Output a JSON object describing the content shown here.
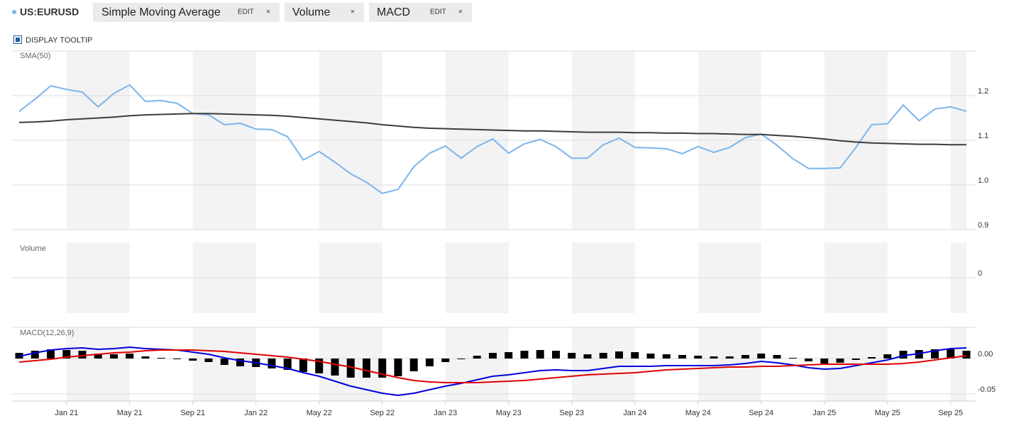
{
  "header": {
    "tabs": [
      {
        "label": "Simple Moving Average",
        "edit": "EDIT",
        "close": "×"
      },
      {
        "label": "Volume",
        "close": "×"
      },
      {
        "label": "MACD",
        "edit": "EDIT",
        "close": "×"
      }
    ],
    "tooltip": "DISPLAY TOOLTIP"
  },
  "chart_data": [
    {
      "type": "line",
      "ylim": [
        0.9,
        1.3
      ],
      "yticks": [
        0.9,
        {
          "value": 1,
          "label": "1.0"
        },
        1.1,
        1.2
      ],
      "grid": true,
      "series": [
        {
          "name": "US:EURUSD",
          "color": "#7cb5ec",
          "values": [
            1.165,
            1.192,
            1.222,
            1.214,
            1.208,
            1.175,
            1.205,
            1.224,
            1.187,
            1.189,
            1.183,
            1.16,
            1.157,
            1.135,
            1.138,
            1.125,
            1.124,
            1.108,
            1.056,
            1.075,
            1.051,
            1.025,
            1.006,
            0.981,
            0.99,
            1.041,
            1.071,
            1.087,
            1.06,
            1.086,
            1.103,
            1.071,
            1.092,
            1.102,
            1.086,
            1.06,
            1.06,
            1.09,
            1.105,
            1.084,
            1.083,
            1.081,
            1.07,
            1.086,
            1.073,
            1.084,
            1.106,
            1.114,
            1.089,
            1.059,
            1.037,
            1.037,
            1.038,
            1.084,
            1.135,
            1.137,
            1.179,
            1.144,
            1.17,
            1.175,
            1.165
          ]
        },
        {
          "name": "SMA(50)",
          "color": "#3c3c3c",
          "values": [
            1.14,
            1.141,
            1.143,
            1.146,
            1.148,
            1.15,
            1.152,
            1.155,
            1.157,
            1.158,
            1.159,
            1.16,
            1.16,
            1.159,
            1.158,
            1.157,
            1.156,
            1.154,
            1.151,
            1.148,
            1.145,
            1.142,
            1.139,
            1.135,
            1.132,
            1.129,
            1.127,
            1.126,
            1.125,
            1.124,
            1.123,
            1.122,
            1.121,
            1.121,
            1.12,
            1.119,
            1.118,
            1.118,
            1.118,
            1.117,
            1.117,
            1.116,
            1.116,
            1.115,
            1.115,
            1.114,
            1.113,
            1.113,
            1.111,
            1.109,
            1.106,
            1.103,
            1.099,
            1.096,
            1.094,
            1.093,
            1.092,
            1.091,
            1.091,
            1.09,
            1.09
          ]
        }
      ]
    },
    {
      "type": "bar",
      "title": "Volume",
      "yticks": [
        0
      ],
      "grid": true
    },
    {
      "type": "line",
      "title": "MACD(12,26,9)",
      "ylim": [
        -0.06,
        0.044
      ],
      "yticks": [
        {
          "value": -0.05,
          "label": "-0.05"
        },
        {
          "value": 0,
          "label": "0.00"
        }
      ],
      "grid": true,
      "categories": [
        null,
        null,
        null,
        "Jan 21",
        null,
        null,
        null,
        "May 21",
        null,
        null,
        null,
        "Sep 21",
        null,
        null,
        null,
        "Jan 22",
        null,
        null,
        null,
        "May 22",
        null,
        null,
        null,
        "Sep 22",
        null,
        null,
        null,
        "Jan 23",
        null,
        null,
        null,
        "May 23",
        null,
        null,
        null,
        "Sep 23",
        null,
        null,
        null,
        "Jan 24",
        null,
        null,
        null,
        "May 24",
        null,
        null,
        null,
        "Sep 24",
        null,
        null,
        null,
        "Jan 25",
        null,
        null,
        null,
        "May 25",
        null,
        null,
        null,
        "Sep 25",
        null
      ],
      "series": [
        {
          "type": "bar",
          "color": "#000000",
          "values": [
            0.008,
            0.011,
            0.013,
            0.012,
            0.011,
            0.007,
            0.006,
            0.007,
            0.003,
            0.001,
            0,
            -0.003,
            -0.005,
            -0.009,
            -0.011,
            -0.012,
            -0.014,
            -0.016,
            -0.019,
            -0.021,
            -0.024,
            -0.027,
            -0.027,
            -0.027,
            -0.025,
            -0.018,
            -0.011,
            -0.005,
            -0.001,
            0.004,
            0.008,
            0.009,
            0.011,
            0.012,
            0.011,
            0.008,
            0.006,
            0.008,
            0.01,
            0.009,
            0.007,
            0.006,
            0.005,
            0.004,
            0.003,
            0.003,
            0.005,
            0.007,
            0.005,
            0.001,
            -0.004,
            -0.007,
            -0.006,
            -0.002,
            0.002,
            0.006,
            0.011,
            0.012,
            0.013,
            0.013,
            0.011
          ]
        },
        {
          "color": "#0000dd",
          "values": [
            0.003,
            0.008,
            0.012,
            0.014,
            0.015,
            0.013,
            0.014,
            0.016,
            0.014,
            0.013,
            0.012,
            0.009,
            0.006,
            0.001,
            -0.003,
            -0.006,
            -0.01,
            -0.014,
            -0.02,
            -0.025,
            -0.032,
            -0.039,
            -0.044,
            -0.049,
            -0.052,
            -0.049,
            -0.044,
            -0.039,
            -0.035,
            -0.03,
            -0.025,
            -0.023,
            -0.02,
            -0.017,
            -0.016,
            -0.017,
            -0.017,
            -0.014,
            -0.011,
            -0.011,
            -0.011,
            -0.01,
            -0.01,
            -0.01,
            -0.01,
            -0.009,
            -0.007,
            -0.004,
            -0.006,
            -0.009,
            -0.013,
            -0.015,
            -0.014,
            -0.01,
            -0.006,
            -0.002,
            0.004,
            0.007,
            0.011,
            0.014,
            0.015
          ]
        },
        {
          "color": "#e00000",
          "values": [
            -0.005,
            -0.003,
            -0.001,
            0.002,
            0.004,
            0.006,
            0.008,
            0.009,
            0.011,
            0.012,
            0.012,
            0.012,
            0.011,
            0.01,
            0.008,
            0.006,
            0.004,
            0.002,
            -0.001,
            -0.004,
            -0.008,
            -0.012,
            -0.017,
            -0.022,
            -0.027,
            -0.031,
            -0.033,
            -0.034,
            -0.034,
            -0.034,
            -0.033,
            -0.032,
            -0.031,
            -0.029,
            -0.027,
            -0.025,
            -0.023,
            -0.022,
            -0.021,
            -0.02,
            -0.018,
            -0.016,
            -0.015,
            -0.014,
            -0.013,
            -0.012,
            -0.012,
            -0.011,
            -0.011,
            -0.01,
            -0.009,
            -0.008,
            -0.008,
            -0.008,
            -0.008,
            -0.008,
            -0.007,
            -0.005,
            -0.002,
            0.001,
            0.004
          ]
        }
      ]
    }
  ]
}
